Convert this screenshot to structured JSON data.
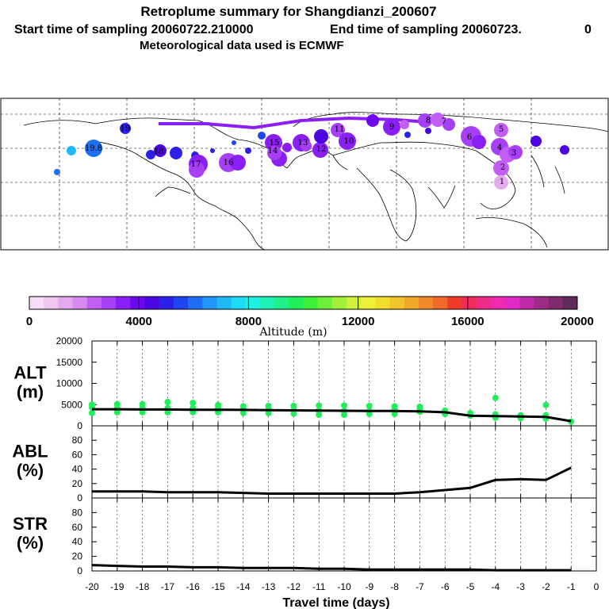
{
  "title": {
    "line1": "Retroplume summary for Shangdianzi_200607",
    "line2_start": "Start time of sampling 20060722.210000",
    "line2_end": "End time of sampling 20060723.",
    "line2_zero": "0",
    "line3": "Meteorological data used is ECMWF"
  },
  "map": {
    "labels": [
      "19.8",
      "19",
      "18",
      "17",
      "16",
      "15",
      "14",
      "13",
      "12",
      "11",
      "10",
      "9",
      "8",
      "7",
      "6",
      "5",
      "4",
      "3",
      "2",
      "1"
    ]
  },
  "colorbar": {
    "colors": [
      "#f6dcf6",
      "#efc6ef",
      "#e4a9ee",
      "#d98aee",
      "#c35ef4",
      "#a63ff5",
      "#8a1ff5",
      "#6e08f0",
      "#4a05e0",
      "#2b1fe8",
      "#1f45f0",
      "#1f6ef5",
      "#1f95f5",
      "#1fb9f5",
      "#1fdcf5",
      "#1ff0e4",
      "#1ff0b5",
      "#1ff08a",
      "#1ff05a",
      "#3ff03a",
      "#6ef03a",
      "#a3f03a",
      "#d0f03a",
      "#eef03a",
      "#f0df2a",
      "#f0c42a",
      "#f0a82a",
      "#f08a2a",
      "#f06a2a",
      "#f03a2a",
      "#f02a5a",
      "#f02a8a",
      "#f02ab0",
      "#e02ac8",
      "#c02aa8",
      "#a02a88",
      "#802a70",
      "#602a58"
    ],
    "tick_labels": [
      "0",
      "4000",
      "8000",
      "12000",
      "16000",
      "20000"
    ],
    "label": "Altitude (m)"
  },
  "chart_data": [
    {
      "type": "line",
      "id": "alt",
      "ylabel": [
        "ALT",
        "(m)"
      ],
      "ylim": [
        0,
        20000
      ],
      "yticks": [
        0,
        5000,
        10000,
        15000,
        20000
      ],
      "xlim": [
        -20,
        0
      ],
      "x": [
        -20,
        -19,
        -18,
        -17,
        -16,
        -15,
        -14,
        -13,
        -12,
        -11,
        -10,
        -9,
        -8,
        -7,
        -6,
        -5,
        -4,
        -3,
        -2,
        -1
      ],
      "values": [
        3900,
        3900,
        3850,
        3850,
        3800,
        3800,
        3750,
        3700,
        3650,
        3600,
        3550,
        3500,
        3500,
        3400,
        3200,
        2400,
        2300,
        2200,
        2100,
        1100
      ],
      "scatter_color": "#1ff05a",
      "scatter_points": [
        {
          "x": -20,
          "y": 3000
        },
        {
          "x": -20,
          "y": 4300
        },
        {
          "x": -20,
          "y": 5000
        },
        {
          "x": -19,
          "y": 3200
        },
        {
          "x": -19,
          "y": 4200
        },
        {
          "x": -19,
          "y": 5100
        },
        {
          "x": -18,
          "y": 3200
        },
        {
          "x": -18,
          "y": 4200
        },
        {
          "x": -18,
          "y": 5100
        },
        {
          "x": -17,
          "y": 3200
        },
        {
          "x": -17,
          "y": 4200
        },
        {
          "x": -17,
          "y": 5600
        },
        {
          "x": -16,
          "y": 3200
        },
        {
          "x": -16,
          "y": 4200
        },
        {
          "x": -16,
          "y": 5400
        },
        {
          "x": -15,
          "y": 3200
        },
        {
          "x": -15,
          "y": 4200
        },
        {
          "x": -15,
          "y": 4900
        },
        {
          "x": -14,
          "y": 3000
        },
        {
          "x": -14,
          "y": 3900
        },
        {
          "x": -14,
          "y": 4600
        },
        {
          "x": -13,
          "y": 3000
        },
        {
          "x": -13,
          "y": 3900
        },
        {
          "x": -13,
          "y": 4700
        },
        {
          "x": -12,
          "y": 2900
        },
        {
          "x": -12,
          "y": 3800
        },
        {
          "x": -12,
          "y": 4700
        },
        {
          "x": -11,
          "y": 2600
        },
        {
          "x": -11,
          "y": 3600
        },
        {
          "x": -11,
          "y": 4800
        },
        {
          "x": -10,
          "y": 2600
        },
        {
          "x": -10,
          "y": 3500
        },
        {
          "x": -10,
          "y": 4800
        },
        {
          "x": -9,
          "y": 2800
        },
        {
          "x": -9,
          "y": 3500
        },
        {
          "x": -9,
          "y": 4700
        },
        {
          "x": -8,
          "y": 2800
        },
        {
          "x": -8,
          "y": 3800
        },
        {
          "x": -8,
          "y": 4600
        },
        {
          "x": -7,
          "y": 3300
        },
        {
          "x": -7,
          "y": 3900
        },
        {
          "x": -7,
          "y": 4500
        },
        {
          "x": -6,
          "y": 2800
        },
        {
          "x": -6,
          "y": 3600
        },
        {
          "x": -5,
          "y": 2400
        },
        {
          "x": -5,
          "y": 3000
        },
        {
          "x": -4,
          "y": 1900
        },
        {
          "x": -4,
          "y": 2700
        },
        {
          "x": -4,
          "y": 6600
        },
        {
          "x": -3,
          "y": 1800
        },
        {
          "x": -3,
          "y": 2500
        },
        {
          "x": -2,
          "y": 1700
        },
        {
          "x": -2,
          "y": 2500
        },
        {
          "x": -2,
          "y": 4900
        },
        {
          "x": -1,
          "y": 1000
        }
      ]
    },
    {
      "type": "line",
      "id": "abl",
      "ylabel": [
        "ABL",
        "(%)"
      ],
      "ylim": [
        0,
        100
      ],
      "yticks": [
        0,
        20,
        40,
        60,
        80
      ],
      "xlim": [
        -20,
        0
      ],
      "x": [
        -20,
        -19,
        -18,
        -17,
        -16,
        -15,
        -14,
        -13,
        -12,
        -11,
        -10,
        -9,
        -8,
        -7,
        -6,
        -5,
        -4,
        -3,
        -2,
        -1
      ],
      "values": [
        9,
        9,
        9,
        8,
        8,
        8,
        7,
        6,
        6,
        6,
        6,
        6,
        6,
        8,
        11,
        14,
        25,
        26,
        25,
        42
      ]
    },
    {
      "type": "line",
      "id": "str",
      "ylabel": [
        "STR",
        "(%)"
      ],
      "ylim": [
        0,
        100
      ],
      "yticks": [
        0,
        20,
        40,
        60,
        80
      ],
      "xlim": [
        -20,
        0
      ],
      "x": [
        -20,
        -19,
        -18,
        -17,
        -16,
        -15,
        -14,
        -13,
        -12,
        -11,
        -10,
        -9,
        -8,
        -7,
        -6,
        -5,
        -4,
        -3,
        -2,
        -1
      ],
      "values": [
        8,
        7,
        6,
        6,
        5,
        5,
        4,
        4,
        4,
        3,
        3,
        2,
        2,
        2,
        2,
        2,
        1,
        1,
        1,
        1
      ],
      "xlabel": "Travel time (days)",
      "xtick_labels": [
        "-20",
        "-19",
        "-18",
        "-17",
        "-16",
        "-15",
        "-14",
        "-13",
        "-12",
        "-11",
        "-10",
        "-9",
        "-8",
        "-7",
        "-6",
        "-5",
        "-4",
        "-3",
        "-2",
        "-1",
        "0"
      ]
    }
  ]
}
